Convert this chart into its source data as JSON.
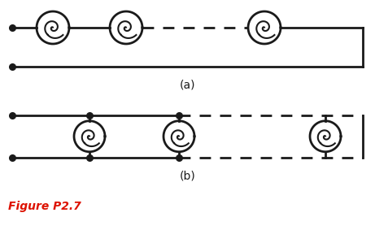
{
  "bg_color": "#ffffff",
  "line_color": "#1a1a1a",
  "label_color": "#1a1a1a",
  "figure_label_color": "#dd1100",
  "title_a": "(a)",
  "title_b": "(b)",
  "figure_label": "Figure P2.7",
  "line_width": 2.0,
  "dot_size": 5.5,
  "figsize": [
    4.61,
    2.99
  ],
  "dpi": 100
}
